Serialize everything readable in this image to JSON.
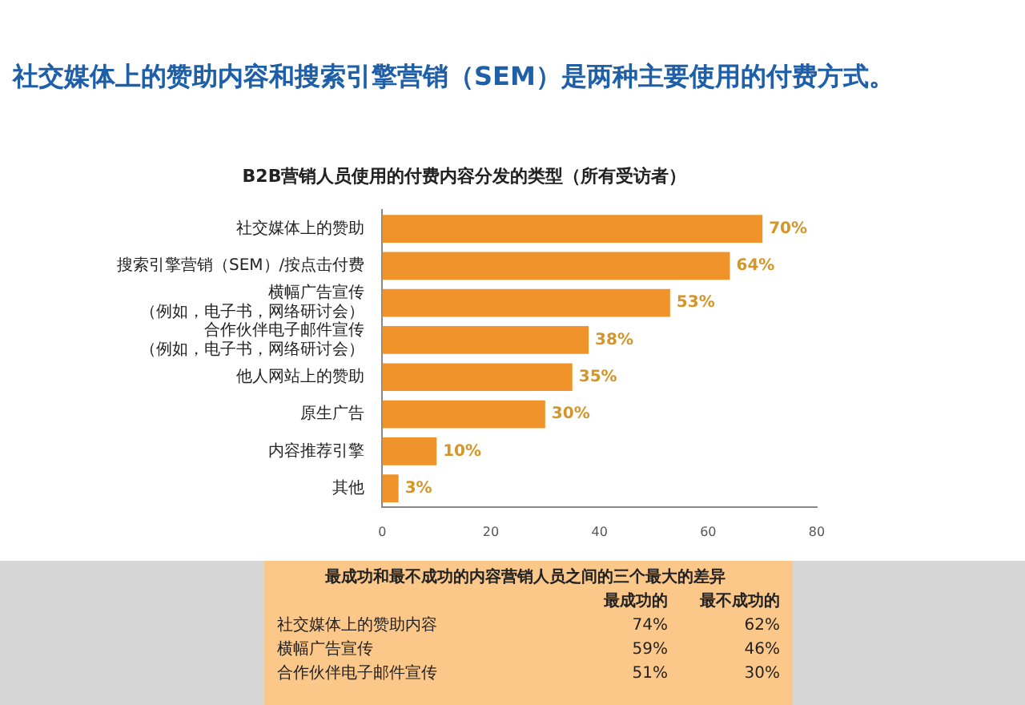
{
  "chart_data": {
    "type": "bar",
    "orientation": "horizontal",
    "title": "社交媒体上的赞助内容和搜索引擎营销（SEM）是两种主要使用的付费方式。",
    "subtitle": "B2B营销人员使用的付费内容分发的类型（所有受访者）",
    "categories": [
      "社交媒体上的赞助",
      "搜索引擎营销（SEM）/按点击付费",
      "横幅广告宣传（例如，电子书，网络研讨会）",
      "合作伙伴电子邮件宣传（例如，电子书，网络研讨会）",
      "他人网站上的赞助",
      "原生广告",
      "内容推荐引擎",
      "其他"
    ],
    "values": [
      70,
      64,
      53,
      38,
      35,
      30,
      10,
      3
    ],
    "value_labels": [
      "70%",
      "64%",
      "53%",
      "38%",
      "35%",
      "30%",
      "10%",
      "3%"
    ],
    "color": "#f0932b",
    "xlim": [
      0,
      80
    ],
    "xticks": [
      0,
      20,
      40,
      60,
      80
    ],
    "grid": false,
    "legend": false,
    "annotations": [
      "最成功和最不成功的内容营销人员之间的三个最大的差异",
      "最成功的",
      "最不成功的",
      "社交媒体上的赞助内容",
      "74%",
      "62%",
      "横幅广告宣传",
      "59%",
      "46%",
      "合作伙伴电子邮件宣传",
      "51%",
      "30%"
    ]
  }
}
